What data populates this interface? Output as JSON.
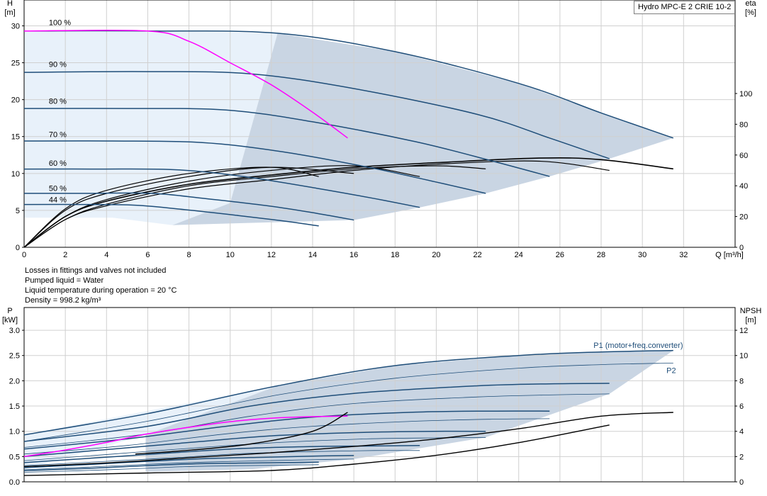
{
  "title": "Hydro MPC-E 2 CRIE 10-2",
  "notes": [
    "Losses in fittings and valves not included",
    "Pumped liquid = Water",
    "Liquid temperature during operation = 20 °C",
    "Density = 998.2 kg/m³"
  ],
  "colors": {
    "curve": "#1f4e79",
    "system_curve": "#ff00ff",
    "efficiency": "#000000",
    "region_dark": "#c9d5e3",
    "region_light": "#e8f1fa",
    "grid": "#d0d0d0"
  },
  "chart_data": [
    {
      "type": "line",
      "name": "qh",
      "x_axis": {
        "label": "Q [m³/h]",
        "range": [
          0,
          34.5
        ],
        "ticks": [
          0,
          2,
          4,
          6,
          8,
          10,
          12,
          14,
          16,
          18,
          20,
          22,
          24,
          26,
          28,
          30,
          32
        ]
      },
      "y_axis": {
        "label_top": "H",
        "label_unit": "[m]",
        "range": [
          0,
          33.5
        ],
        "ticks": [
          0,
          5,
          10,
          15,
          20,
          25,
          30
        ]
      },
      "y2_axis": {
        "label_top": "eta",
        "label_unit": "[%]",
        "range": [
          0,
          160.8
        ],
        "ticks": [
          0,
          20,
          40,
          60,
          80,
          100
        ]
      },
      "grid": true,
      "speed_labels": [
        {
          "text": "100 %",
          "q": 1.2,
          "h": 30.5
        },
        {
          "text": "90 %",
          "q": 1.2,
          "h": 24.8
        },
        {
          "text": "80 %",
          "q": 1.2,
          "h": 19.8
        },
        {
          "text": "70 %",
          "q": 1.2,
          "h": 15.3
        },
        {
          "text": "60 %",
          "q": 1.2,
          "h": 11.4
        },
        {
          "text": "50 %",
          "q": 1.2,
          "h": 8.0
        },
        {
          "text": "44 %",
          "q": 1.2,
          "h": 6.5
        }
      ],
      "head_curves": [
        {
          "speed": 1.0,
          "q": [
            0,
            6,
            12.3,
            18,
            24,
            28,
            31.5
          ],
          "h": [
            29.3,
            29.3,
            29.0,
            26.5,
            22.2,
            18.2,
            14.8
          ]
        },
        {
          "speed": 0.9,
          "q": [
            0,
            6,
            11,
            16,
            22,
            25.5,
            28.4
          ],
          "h": [
            23.7,
            23.8,
            23.5,
            21.5,
            18.0,
            14.8,
            12.0
          ]
        },
        {
          "speed": 0.8,
          "q": [
            0,
            5,
            9.8,
            14,
            19,
            22.7,
            25.5
          ],
          "h": [
            18.8,
            18.8,
            18.6,
            17.0,
            14.3,
            11.7,
            9.6
          ]
        },
        {
          "speed": 0.7,
          "q": [
            0,
            4.3,
            8.6,
            12.4,
            16.6,
            19.9,
            22.4
          ],
          "h": [
            14.4,
            14.4,
            14.2,
            13.0,
            10.9,
            8.9,
            7.3
          ]
        },
        {
          "speed": 0.6,
          "q": [
            0,
            3.7,
            7.4,
            10.6,
            14.2,
            17,
            19.2
          ],
          "h": [
            10.6,
            10.6,
            10.5,
            9.6,
            8.0,
            6.6,
            5.4
          ]
        },
        {
          "speed": 0.5,
          "q": [
            0,
            3,
            6.2,
            8.8,
            11.9,
            14.2,
            16
          ],
          "h": [
            7.3,
            7.3,
            7.3,
            6.6,
            5.6,
            4.6,
            3.7
          ]
        },
        {
          "speed": 0.44,
          "q": [
            0,
            2.7,
            5.4,
            7.8,
            10.4,
            12.5,
            14.3
          ],
          "h": [
            5.8,
            5.8,
            5.7,
            5.1,
            4.3,
            3.6,
            2.9
          ]
        }
      ],
      "system_curve": {
        "q": [
          0,
          6,
          8,
          10,
          12,
          14,
          15.7
        ],
        "h": [
          29.3,
          29.3,
          27.9,
          25.0,
          22.0,
          18.3,
          14.8
        ]
      },
      "efficiency_curves": [
        {
          "q": [
            0,
            2,
            4,
            8,
            12,
            16,
            20,
            25,
            28,
            31.5
          ],
          "eta": [
            0,
            20,
            30,
            41,
            47,
            52,
            55,
            58,
            57,
            51
          ]
        },
        {
          "q": [
            0,
            2,
            4,
            8,
            12,
            16,
            20,
            25,
            28.4
          ],
          "eta": [
            0,
            18,
            27,
            38,
            44,
            50,
            54,
            56,
            50
          ]
        },
        {
          "q": [
            0,
            2,
            4,
            8,
            12,
            16,
            20,
            22.4
          ],
          "eta": [
            0,
            18,
            28,
            40,
            46,
            51,
            53,
            51
          ]
        },
        {
          "q": [
            0,
            2,
            4,
            8,
            12,
            16,
            19.2
          ],
          "eta": [
            0,
            20,
            31,
            43,
            50,
            53,
            46
          ]
        },
        {
          "q": [
            0,
            2,
            4,
            8,
            12,
            16
          ],
          "eta": [
            0,
            24,
            35,
            46,
            52,
            48
          ]
        },
        {
          "q": [
            0,
            2,
            4,
            8,
            12,
            14.3
          ],
          "eta": [
            0,
            25,
            37,
            48,
            52,
            46
          ]
        }
      ],
      "region_dark": {
        "q": [
          7.2,
          10,
          12.3,
          18,
          24,
          28,
          31.5,
          28.4,
          25.5,
          22.4,
          19.2,
          16
        ],
        "h": [
          3.0,
          6.0,
          29.0,
          26.5,
          22.2,
          18.2,
          14.8,
          12.0,
          9.6,
          7.3,
          5.4,
          3.7
        ]
      },
      "region_light": {
        "q": [
          0,
          6,
          12.3,
          10,
          7.2,
          4.3,
          0
        ],
        "h": [
          29.3,
          29.3,
          29.0,
          6.0,
          3.0,
          4.0,
          4.0
        ]
      }
    },
    {
      "type": "line",
      "name": "power",
      "x_axis": {
        "range": [
          0,
          34.5
        ],
        "ticks": [
          0,
          2,
          4,
          6,
          8,
          10,
          12,
          14,
          16,
          18,
          20,
          22,
          24,
          26,
          28,
          30,
          32
        ]
      },
      "y_axis": {
        "label_top": "P",
        "label_unit": "[kW]",
        "range": [
          0,
          3.45
        ],
        "ticks": [
          0.0,
          0.5,
          1.0,
          1.5,
          2.0,
          2.5,
          3.0
        ],
        "tick_labels": [
          "0.0",
          "0.5",
          "1.0",
          "1.5",
          "2.0",
          "2.5",
          "3.0"
        ]
      },
      "y2_axis": {
        "label_top": "NPSH",
        "label_unit": "[m]",
        "range": [
          0,
          13.8
        ],
        "ticks": [
          0,
          2,
          4,
          6,
          8,
          10,
          12
        ]
      },
      "grid": true,
      "series_labels": [
        {
          "text": "P1 (motor+freq.converter)",
          "q": 29.8,
          "p": 2.71
        },
        {
          "text": "P2",
          "q": 31.4,
          "p": 2.21
        }
      ],
      "p1_curves": [
        {
          "q": [
            0,
            6,
            12.3,
            18,
            24,
            28,
            31.5
          ],
          "p": [
            0.93,
            1.35,
            1.9,
            2.3,
            2.5,
            2.57,
            2.6
          ]
        },
        {
          "q": [
            0,
            6,
            11,
            16,
            22,
            25.5,
            28.4
          ],
          "p": [
            0.8,
            1.1,
            1.5,
            1.75,
            1.9,
            1.94,
            1.95
          ]
        },
        {
          "q": [
            0,
            5,
            9.8,
            14,
            19,
            22.7,
            25.5
          ],
          "p": [
            0.65,
            0.85,
            1.1,
            1.28,
            1.38,
            1.4,
            1.4
          ]
        },
        {
          "q": [
            0,
            4.3,
            8.6,
            12.4,
            16.6,
            19.9,
            22.4
          ],
          "p": [
            0.5,
            0.65,
            0.8,
            0.92,
            0.98,
            1.0,
            1.0
          ]
        },
        {
          "q": [
            0,
            3.7,
            7.4,
            10.6,
            14.2,
            17,
            19.2
          ],
          "p": [
            0.38,
            0.48,
            0.58,
            0.66,
            0.7,
            0.71,
            0.72
          ]
        },
        {
          "q": [
            0,
            3,
            6.2,
            8.8,
            11.9,
            14.2,
            16
          ],
          "p": [
            0.28,
            0.34,
            0.41,
            0.46,
            0.49,
            0.51,
            0.52
          ]
        },
        {
          "q": [
            0,
            2.7,
            5.4,
            7.8,
            10.4,
            12.5,
            14.3
          ],
          "p": [
            0.22,
            0.26,
            0.31,
            0.35,
            0.37,
            0.38,
            0.39
          ]
        }
      ],
      "p2_curves": [
        {
          "q": [
            0,
            6,
            12.3,
            18,
            24,
            28,
            31.5
          ],
          "p": [
            0.8,
            1.2,
            1.72,
            2.05,
            2.25,
            2.32,
            2.35
          ]
        },
        {
          "q": [
            0,
            6,
            11,
            16,
            22,
            25.5,
            28.4
          ],
          "p": [
            0.68,
            0.95,
            1.3,
            1.55,
            1.68,
            1.72,
            1.74
          ]
        },
        {
          "q": [
            0,
            5,
            9.8,
            14,
            19,
            22.7,
            25.5
          ],
          "p": [
            0.55,
            0.72,
            0.95,
            1.1,
            1.2,
            1.24,
            1.25
          ]
        },
        {
          "q": [
            0,
            4.3,
            8.6,
            12.4,
            16.6,
            19.9,
            22.4
          ],
          "p": [
            0.42,
            0.55,
            0.68,
            0.78,
            0.85,
            0.87,
            0.88
          ]
        },
        {
          "q": [
            0,
            3.7,
            7.4,
            10.6,
            14.2,
            17,
            19.2
          ],
          "p": [
            0.32,
            0.4,
            0.48,
            0.56,
            0.6,
            0.62,
            0.62
          ]
        },
        {
          "q": [
            0,
            3,
            6.2,
            8.8,
            11.9,
            14.2,
            16
          ],
          "p": [
            0.24,
            0.29,
            0.35,
            0.39,
            0.42,
            0.44,
            0.45
          ]
        },
        {
          "q": [
            0,
            2.7,
            5.4,
            7.8,
            10.4,
            12.5,
            14.3
          ],
          "p": [
            0.19,
            0.22,
            0.26,
            0.3,
            0.32,
            0.33,
            0.34
          ]
        }
      ],
      "system_power": {
        "q": [
          0,
          2,
          4,
          6,
          8,
          10,
          12,
          14,
          15.7
        ],
        "p": [
          0.5,
          0.63,
          0.78,
          0.95,
          1.08,
          1.19,
          1.26,
          1.29,
          1.3
        ]
      },
      "npsh_curves": [
        {
          "q": [
            0,
            4,
            8,
            12,
            16,
            20,
            24,
            28,
            31.5
          ],
          "npsh": [
            1.2,
            1.5,
            1.9,
            2.3,
            2.8,
            3.4,
            4.2,
            5.2,
            5.5
          ]
        },
        {
          "q": [
            0,
            6,
            12,
            16,
            20,
            24,
            28.4
          ],
          "npsh": [
            0.5,
            0.7,
            0.9,
            1.4,
            2.1,
            3.1,
            4.5
          ]
        },
        {
          "q": [
            5.4,
            8,
            11,
            14,
            15.7
          ],
          "npsh": [
            2.2,
            2.5,
            3.0,
            4.0,
            5.5
          ]
        }
      ],
      "region_dark": {
        "q": [
          5.9,
          12.3,
          18,
          24,
          28,
          31.5,
          28.4,
          22.4,
          16,
          11,
          5.9
        ],
        "p": [
          0.93,
          1.9,
          2.3,
          2.5,
          2.57,
          2.6,
          1.74,
          0.88,
          0.45,
          0.25,
          0.2
        ]
      },
      "region_light": {
        "q": [
          0,
          12.3,
          5.9,
          0
        ],
        "p": [
          0.93,
          1.9,
          0.93,
          0.25
        ]
      }
    }
  ]
}
